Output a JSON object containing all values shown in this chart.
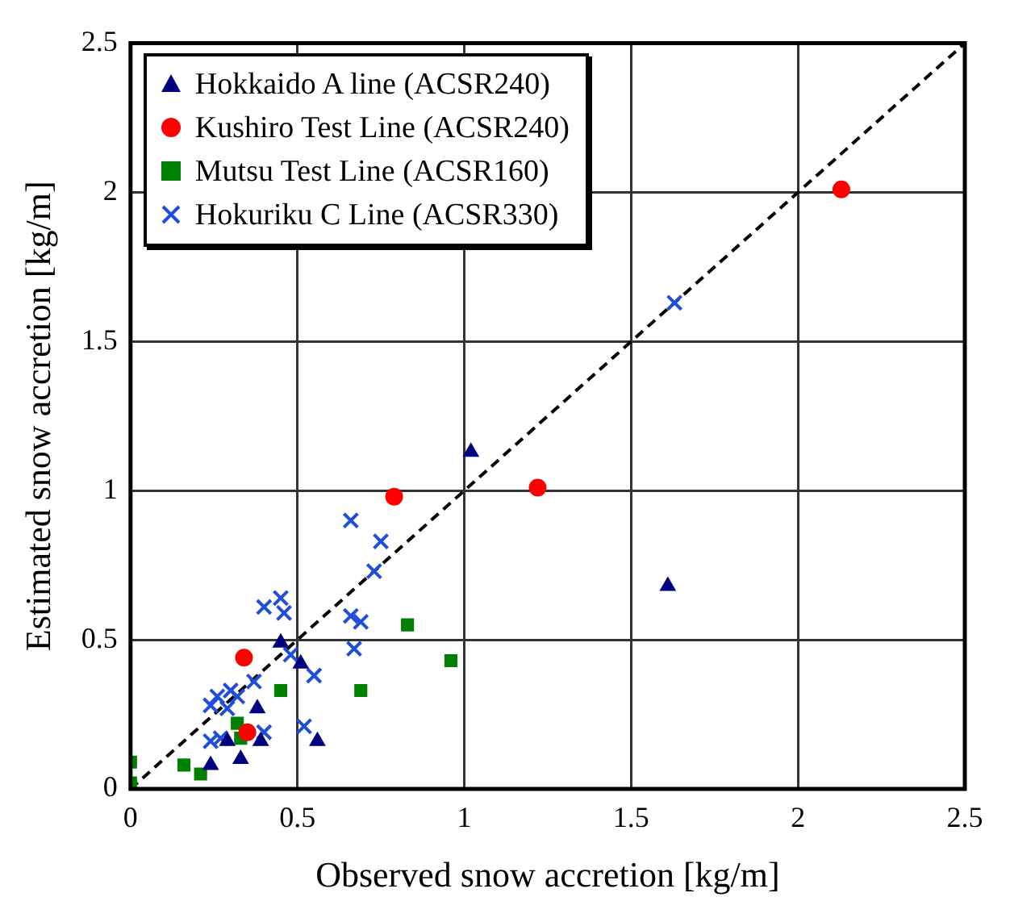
{
  "chart_data": {
    "type": "scatter",
    "xlabel": "Observed snow accretion [kg/m]",
    "ylabel": "Estimated snow accretion [kg/m]",
    "xlim": [
      0,
      2.5
    ],
    "ylim": [
      0,
      2.5
    ],
    "xticks": [
      0,
      0.5,
      1,
      1.5,
      2,
      2.5
    ],
    "yticks": [
      0,
      0.5,
      1,
      1.5,
      2,
      2.5
    ],
    "grid": true,
    "legend": "top left",
    "series": [
      {
        "name": "Hokkaido A line (ACSR240)",
        "color": "#000080",
        "marker": "triangle",
        "x": [
          1.02,
          1.61,
          0.45,
          0.51,
          0.38,
          0.56,
          0.39,
          0.33,
          0.24,
          0.29
        ],
        "values": [
          1.13,
          0.68,
          0.49,
          0.42,
          0.27,
          0.16,
          0.16,
          0.1,
          0.08,
          0.16
        ]
      },
      {
        "name": "Kushiro Test Line (ACSR240)",
        "color": "#ff0000",
        "marker": "circle",
        "x": [
          2.13,
          1.22,
          0.79,
          0.34,
          0.35
        ],
        "values": [
          2.01,
          1.01,
          0.98,
          0.44,
          0.19
        ]
      },
      {
        "name": "Mutsu Test Line (ACSR160)",
        "color": "#008000",
        "marker": "square",
        "x": [
          0,
          0,
          0.16,
          0.21,
          0.32,
          0.33,
          0.45,
          0.69,
          0.83,
          0.96
        ],
        "values": [
          0.02,
          0.09,
          0.08,
          0.05,
          0.22,
          0.17,
          0.33,
          0.33,
          0.55,
          0.43
        ]
      },
      {
        "name": "Hokuriku C Line (ACSR330)",
        "color": "#1f4fd8",
        "marker": "cross",
        "x": [
          1.63,
          0.66,
          0.75,
          0.73,
          0.66,
          0.69,
          0.67,
          0.55,
          0.45,
          0.4,
          0.46,
          0.48,
          0.37,
          0.3,
          0.26,
          0.24,
          0.32,
          0.52,
          0.4,
          0.24,
          0.27,
          0.29
        ],
        "values": [
          1.63,
          0.9,
          0.83,
          0.73,
          0.58,
          0.56,
          0.47,
          0.38,
          0.64,
          0.61,
          0.59,
          0.45,
          0.36,
          0.33,
          0.31,
          0.28,
          0.31,
          0.21,
          0.19,
          0.16,
          0.17,
          0.27
        ]
      },
      {
        "type": "line",
        "color": "#000000",
        "marker": "none",
        "line_style": "dashed",
        "x": [
          0,
          2.5
        ],
        "values": [
          0,
          2.5
        ]
      }
    ]
  }
}
